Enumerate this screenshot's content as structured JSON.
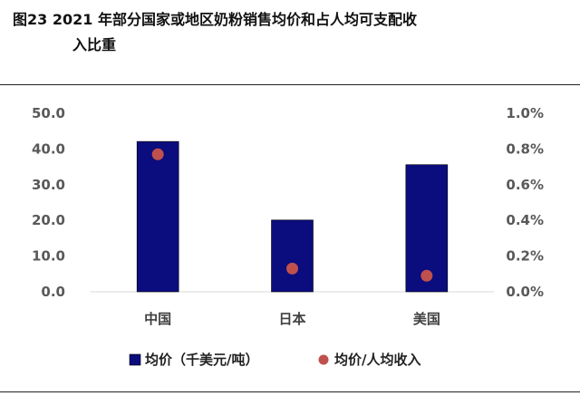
{
  "header": {
    "title_line1": "图23 2021 年部分国家或地区奶粉销售均价和占人均可支配收",
    "title_line2": "入比重"
  },
  "chart_data": {
    "type": "bar",
    "categories": [
      "中国",
      "日本",
      "美国"
    ],
    "series": [
      {
        "name": "均价（千美元/吨）",
        "kind": "bar",
        "axis": "left",
        "color": "#0b0c7d",
        "values": [
          42.1,
          20.1,
          35.6
        ]
      },
      {
        "name": "均价/人均收入",
        "kind": "scatter",
        "axis": "right",
        "color": "#c0504d",
        "values": [
          0.77,
          0.13,
          0.09
        ]
      }
    ],
    "y_left": {
      "ylim": [
        0,
        50
      ],
      "ticks": [
        "0.0",
        "10.0",
        "20.0",
        "30.0",
        "40.0",
        "50.0"
      ]
    },
    "y_right": {
      "ylim": [
        0,
        1.0
      ],
      "ticks": [
        "0.0%",
        "0.2%",
        "0.4%",
        "0.6%",
        "0.8%",
        "1.0%"
      ]
    },
    "grid": false,
    "legend_position": "bottom"
  }
}
